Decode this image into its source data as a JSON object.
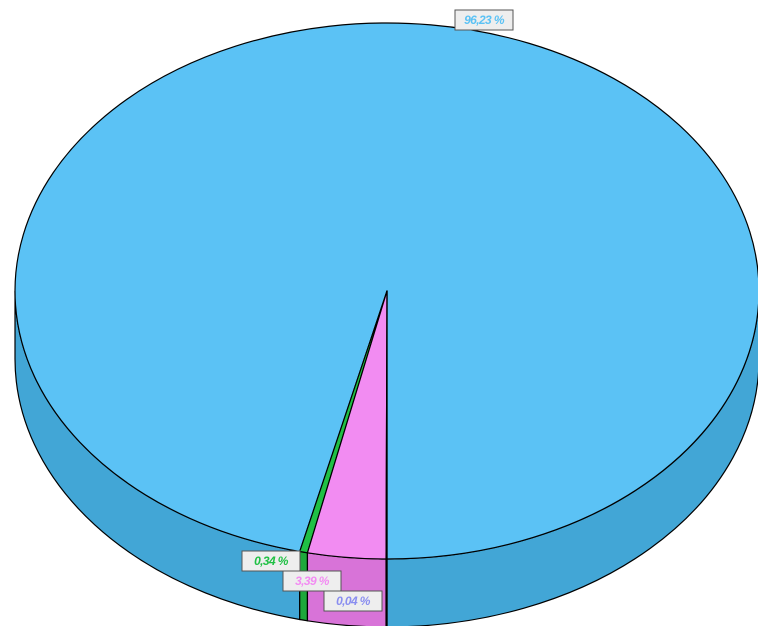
{
  "chart_data": {
    "type": "pie",
    "style": "3d",
    "slices": [
      {
        "label": "96,23 %",
        "value": 96.23,
        "color": "#5bc2f5",
        "side_color": "#42a6d6",
        "label_color": "#5bc2f5"
      },
      {
        "label": "0,34 %",
        "value": 0.34,
        "color": "#20c045",
        "side_color": "#1ea83c",
        "label_color": "#20c045"
      },
      {
        "label": "3,39 %",
        "value": 3.39,
        "color": "#f28cf2",
        "side_color": "#d873d8",
        "label_color": "#f28cf2"
      },
      {
        "label": "0,04 %",
        "value": 0.04,
        "color": "#8a8ef0",
        "side_color": "#6f73d6",
        "label_color": "#8a8ef0"
      }
    ],
    "label_box_color": "#eeeeee"
  }
}
